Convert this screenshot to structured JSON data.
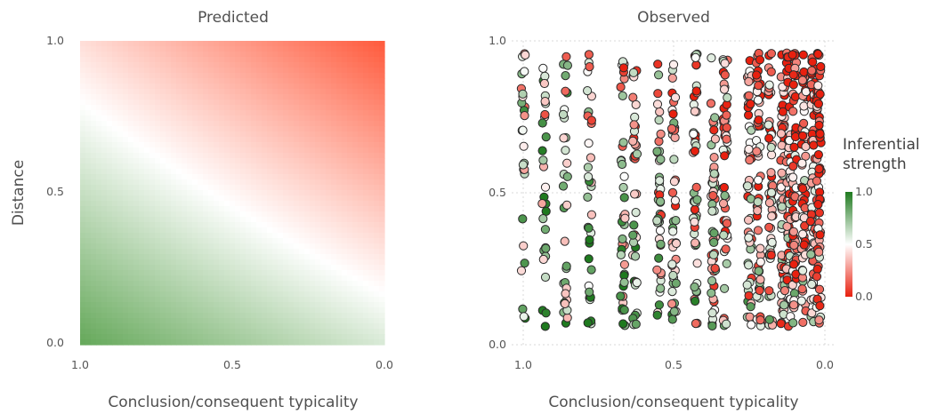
{
  "chart_data": [
    {
      "type": "heatmap",
      "title": "Predicted",
      "xlabel": "Conclusion/consequent typicality",
      "ylabel": "Distance",
      "xlim": [
        1.0,
        0.0
      ],
      "ylim": [
        0.0,
        1.0
      ],
      "x_ticks": [
        "1.0",
        "0.5",
        "0.0"
      ],
      "y_ticks": [
        "0.0",
        "0.5",
        "1.0"
      ],
      "corner_values": {
        "typicality_1_distance_0": 0.9,
        "typicality_1_distance_1": 0.4,
        "typicality_0_distance_0": 0.6,
        "typicality_0_distance_1": 0.0
      },
      "colormap": {
        "low": "#FF5A3C",
        "mid": "#FFFFFF",
        "high": "#3E9230"
      }
    },
    {
      "type": "scatter",
      "title": "Observed",
      "xlabel": "Conclusion/consequent typicality",
      "xlim": [
        1.0,
        0.0
      ],
      "ylim": [
        0.0,
        1.0
      ],
      "x_ticks": [
        "1.0",
        "0.5",
        "0.0"
      ],
      "y_ticks": [
        "0.0",
        "0.5",
        "1.0"
      ],
      "grid": true,
      "x_columns": [
        1.0,
        0.93,
        0.86,
        0.78,
        0.67,
        0.63,
        0.55,
        0.5,
        0.43,
        0.37,
        0.33,
        0.25,
        0.22,
        0.18,
        0.14,
        0.12,
        0.1,
        0.07,
        0.04,
        0.02
      ],
      "point_count_estimate": 900,
      "colorbar": {
        "title": [
          "Inferential",
          "strength"
        ],
        "ticks": [
          "1.0",
          "0.5",
          "0.0"
        ],
        "colors": {
          "low": "#E8200F",
          "mid": "#FFFFFF",
          "high": "#1F7A1F"
        }
      }
    }
  ]
}
